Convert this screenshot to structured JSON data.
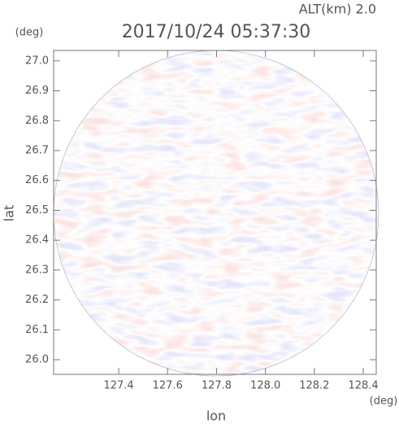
{
  "chart_data": {
    "type": "radar-ppi",
    "title": "2017/10/24 05:37:30",
    "subtitle": "ALT(km) 2.0",
    "x_label": "lon",
    "y_label": "lat",
    "x_unit": "(deg)",
    "y_unit": "(deg)",
    "xlim": [
      127.134,
      128.453
    ],
    "ylim": [
      25.951,
      27.035
    ],
    "xticks": [
      127.4,
      127.6,
      127.8,
      {
        "value": 128,
        "label": "128.0"
      },
      128.2,
      128.4
    ],
    "yticks": [
      {
        "value": 26,
        "label": "26.0"
      },
      26.1,
      26.2,
      26.3,
      26.4,
      26.5,
      26.6,
      26.7,
      26.8,
      26.9,
      {
        "value": 27,
        "label": "27.0"
      }
    ]
  }
}
